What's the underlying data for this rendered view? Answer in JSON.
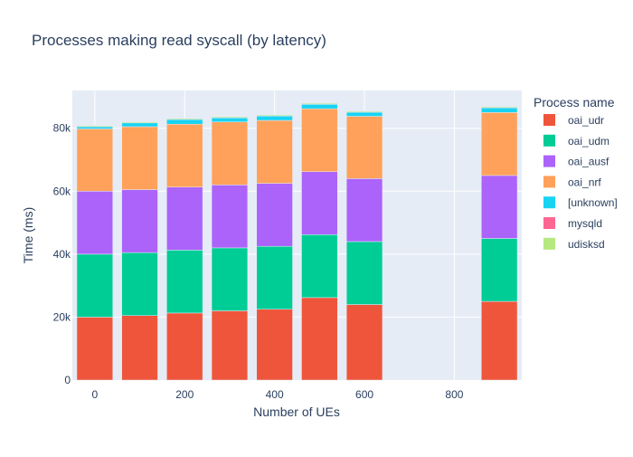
{
  "chart_data": {
    "type": "bar",
    "stacked": true,
    "title": "Processes making read syscall (by latency)",
    "xlabel": "Number of UEs",
    "ylabel": "Time (ms)",
    "xlim": [
      -50,
      950
    ],
    "ylim": [
      0,
      92000
    ],
    "x_ticks": [
      0,
      200,
      400,
      600,
      800
    ],
    "x_tick_labels": [
      "0",
      "200",
      "400",
      "600",
      "800"
    ],
    "y_ticks": [
      0,
      20000,
      40000,
      60000,
      80000
    ],
    "y_tick_labels": [
      "0",
      "20k",
      "40k",
      "60k",
      "80k"
    ],
    "grid": true,
    "legend_title": "Process name",
    "legend_position": "right",
    "x": [
      0,
      100,
      200,
      300,
      400,
      500,
      600,
      900
    ],
    "series": [
      {
        "name": "oai_udr",
        "color": "#EF553B",
        "values": [
          20000,
          20500,
          21300,
          22000,
          22500,
          26200,
          24000,
          25000
        ]
      },
      {
        "name": "oai_udm",
        "color": "#00CC96",
        "values": [
          20000,
          20000,
          20000,
          20000,
          20000,
          20000,
          20000,
          20000
        ]
      },
      {
        "name": "oai_ausf",
        "color": "#AB63FA",
        "values": [
          20000,
          20000,
          20000,
          20000,
          20000,
          20000,
          20000,
          20000
        ]
      },
      {
        "name": "oai_nrf",
        "color": "#FFA15A",
        "values": [
          19800,
          20000,
          20000,
          20000,
          20000,
          20000,
          19800,
          20000
        ]
      },
      {
        "name": "[unknown]",
        "color": "#19D3F3",
        "values": [
          700,
          1200,
          1500,
          1300,
          1400,
          1400,
          1300,
          1500
        ]
      },
      {
        "name": "mysqld",
        "color": "#FF6692",
        "values": [
          50,
          50,
          50,
          50,
          50,
          50,
          50,
          50
        ]
      },
      {
        "name": "udisksd",
        "color": "#B6E880",
        "values": [
          300,
          300,
          300,
          300,
          300,
          300,
          300,
          300
        ]
      }
    ]
  }
}
